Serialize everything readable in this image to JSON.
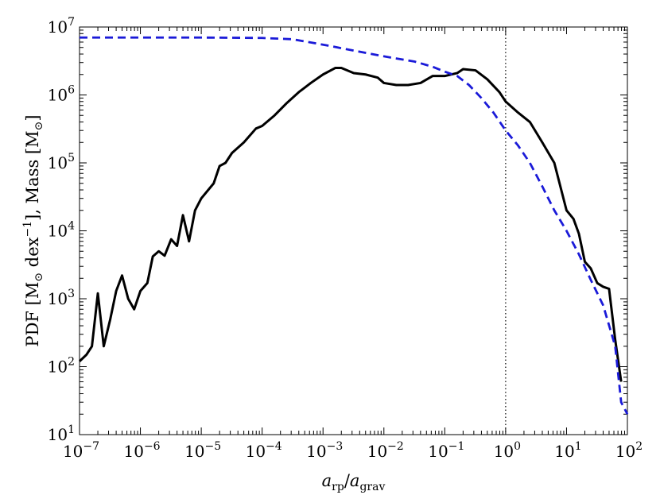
{
  "chart_data": {
    "type": "line",
    "xlabel": "a_rp/a_grav",
    "ylabel": "PDF [M_⊙ dex^-1],   Mass [M_⊙]",
    "xscale": "log",
    "yscale": "log",
    "xlim": [
      1e-07,
      100
    ],
    "ylim": [
      10,
      10000000.0
    ],
    "x_tick_labels": [
      "10-7",
      "10-6",
      "10-5",
      "10-4",
      "10-3",
      "10-2",
      "10-1",
      "100",
      "101",
      "102"
    ],
    "y_tick_labels": [
      "101",
      "102",
      "103",
      "104",
      "105",
      "106",
      "107"
    ],
    "grid": false,
    "legend": "none",
    "reference_lines": [
      {
        "orientation": "vertical",
        "x": 1,
        "style": "dotted",
        "color": "#000000"
      }
    ],
    "series": [
      {
        "style": "solid",
        "color": "#000000",
        "points": [
          [
            1e-07,
            120
          ],
          [
            1.3e-07,
            150
          ],
          [
            1.6e-07,
            200
          ],
          [
            2e-07,
            1200
          ],
          [
            2.5e-07,
            200
          ],
          [
            3.2e-07,
            500
          ],
          [
            4e-07,
            1300
          ],
          [
            5e-07,
            2200
          ],
          [
            6.3e-07,
            1000
          ],
          [
            7.9e-07,
            700
          ],
          [
            1e-06,
            1300
          ],
          [
            1.3e-06,
            1700
          ],
          [
            1.6e-06,
            4200
          ],
          [
            2e-06,
            5000
          ],
          [
            2.5e-06,
            4300
          ],
          [
            3.2e-06,
            7500
          ],
          [
            4e-06,
            6000
          ],
          [
            5e-06,
            17000
          ],
          [
            6.3e-06,
            7000
          ],
          [
            7.9e-06,
            20000
          ],
          [
            1e-05,
            30000
          ],
          [
            1.6e-05,
            50000
          ],
          [
            2e-05,
            90000
          ],
          [
            2.5e-05,
            100000
          ],
          [
            3.2e-05,
            140000
          ],
          [
            5e-05,
            200000
          ],
          [
            7.9e-05,
            320000
          ],
          [
            0.0001,
            350000
          ],
          [
            0.00016,
            500000
          ],
          [
            0.00025,
            750000
          ],
          [
            0.0004,
            1100000
          ],
          [
            0.00063,
            1500000
          ],
          [
            0.001,
            2000000
          ],
          [
            0.0016,
            2500000
          ],
          [
            0.002,
            2500000
          ],
          [
            0.0032,
            2100000
          ],
          [
            0.005,
            2000000
          ],
          [
            0.0079,
            1800000
          ],
          [
            0.01,
            1500000
          ],
          [
            0.016,
            1400000
          ],
          [
            0.025,
            1400000
          ],
          [
            0.04,
            1500000
          ],
          [
            0.063,
            1900000
          ],
          [
            0.1,
            1900000
          ],
          [
            0.16,
            2100000
          ],
          [
            0.2,
            2400000
          ],
          [
            0.32,
            2300000
          ],
          [
            0.5,
            1700000
          ],
          [
            0.79,
            1100000
          ],
          [
            1.0,
            800000
          ],
          [
            1.6,
            550000
          ],
          [
            2.5,
            400000
          ],
          [
            4.0,
            200000
          ],
          [
            6.3,
            100000
          ],
          [
            10,
            20000
          ],
          [
            13,
            15000
          ],
          [
            16,
            9000
          ],
          [
            20,
            3500
          ],
          [
            25,
            2800
          ],
          [
            32,
            1700
          ],
          [
            40,
            1500
          ],
          [
            50,
            1400
          ],
          [
            63,
            250
          ],
          [
            79,
            60
          ]
        ]
      },
      {
        "style": "dashed",
        "color": "#1a1ad8",
        "points": [
          [
            1e-07,
            7000000
          ],
          [
            1e-06,
            7000000
          ],
          [
            1e-05,
            7000000
          ],
          [
            0.0001,
            6900000
          ],
          [
            0.00032,
            6600000
          ],
          [
            0.001,
            5500000
          ],
          [
            0.0032,
            4500000
          ],
          [
            0.01,
            3700000
          ],
          [
            0.032,
            3100000
          ],
          [
            0.063,
            2600000
          ],
          [
            0.1,
            2200000
          ],
          [
            0.16,
            1900000
          ],
          [
            0.25,
            1400000
          ],
          [
            0.4,
            900000
          ],
          [
            0.63,
            550000
          ],
          [
            1.0,
            300000
          ],
          [
            1.6,
            180000
          ],
          [
            2.5,
            100000
          ],
          [
            4.0,
            45000
          ],
          [
            6.3,
            20000
          ],
          [
            10,
            10000
          ],
          [
            16,
            4500
          ],
          [
            25,
            1900
          ],
          [
            40,
            800
          ],
          [
            63,
            200
          ],
          [
            79,
            30
          ],
          [
            100,
            20
          ]
        ]
      }
    ]
  }
}
